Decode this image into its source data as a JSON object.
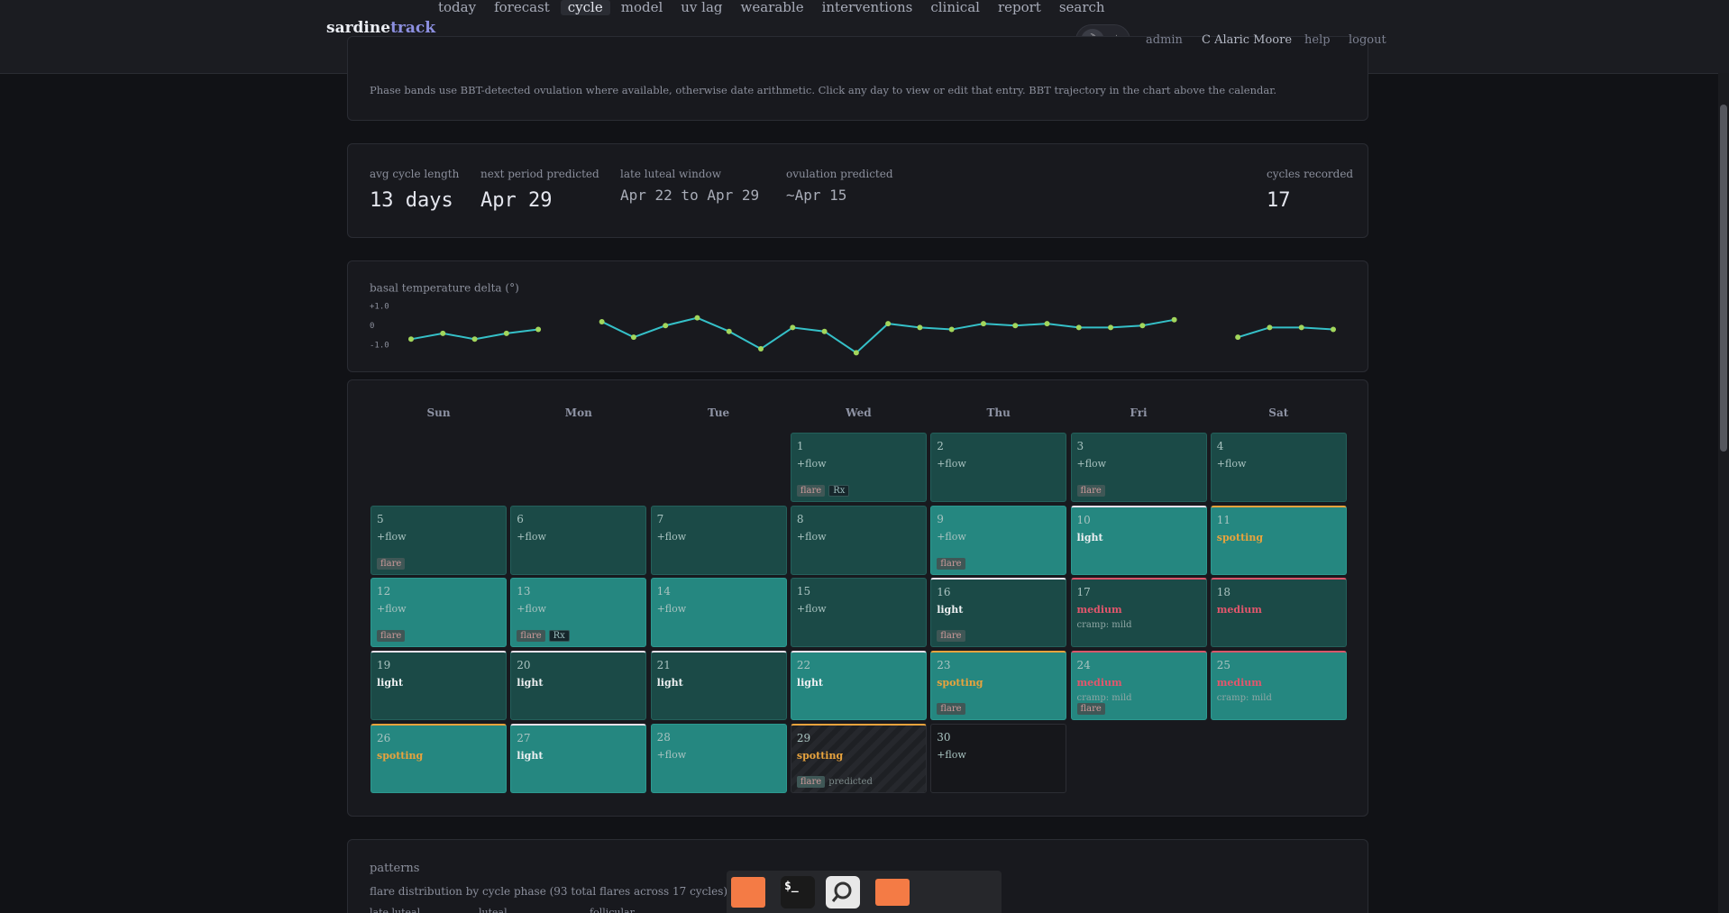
{
  "header": {
    "logo_a": "sardine",
    "logo_b": "track",
    "nav": [
      "today",
      "forecast",
      "cycle",
      "model",
      "uv lag",
      "wearable",
      "interventions",
      "clinical",
      "report",
      "search"
    ],
    "active_nav": 2,
    "toggle": [
      "☽",
      "★"
    ],
    "links": [
      "admin",
      "C Alaric Moore",
      "help",
      "logout"
    ]
  },
  "note": "Phase bands use BBT-detected ovulation where available, otherwise date arithmetic. Click any day to view or edit that entry. BBT trajectory in the chart above the calendar.",
  "stats": [
    {
      "label": "avg cycle length",
      "value": "13 days"
    },
    {
      "label": "next period predicted",
      "value": "Apr 29"
    },
    {
      "label": "late luteal window",
      "value": "Apr 22 to Apr 29"
    },
    {
      "label": "ovulation predicted",
      "value": "~Apr 15"
    },
    {
      "label": "cycles recorded",
      "value": "17"
    }
  ],
  "chart_data": {
    "type": "line",
    "title": "basal temperature delta (°)",
    "values": [
      -0.7,
      -0.4,
      -0.7,
      -0.4,
      -0.2,
      null,
      0.2,
      -0.6,
      0,
      0.4,
      -0.3,
      -1.2,
      -0.1,
      -0.3,
      -1.4,
      0.1,
      -0.1,
      -0.2,
      0.1,
      0,
      0.1,
      -0.1,
      -0.1,
      0,
      0.3,
      null,
      -0.6,
      -0.1,
      -0.1,
      -0.2
    ],
    "color": "#35c0c8",
    "marker_color": "#a2d65c",
    "ylim": [
      -1.5,
      1.5
    ],
    "yticks": [
      {
        "value": 1,
        "label": "+1.0"
      },
      0,
      {
        "value": -1,
        "label": "-1.0"
      }
    ],
    "grid": false
  },
  "calendar": {
    "weekdays": [
      "Sun",
      "Mon",
      "Tue",
      "Wed",
      "Thu",
      "Fri",
      "Sat"
    ],
    "days": [
      null,
      null,
      null,
      {
        "day": 1,
        "flow": "+flow",
        "color": "#a9c3c0",
        "shade": "dark",
        "edge": null,
        "tags": [
          {
            "text": "flare",
            "style": "pill"
          },
          {
            "text": "Rx",
            "style": "dpill"
          }
        ]
      },
      {
        "day": 2,
        "flow": "+flow",
        "color": "#a9c3c0",
        "shade": "dark",
        "edge": null,
        "tags": []
      },
      {
        "day": 3,
        "flow": "+flow",
        "color": "#a9c3c0",
        "shade": "dark",
        "edge": null,
        "tags": [
          {
            "text": "flare",
            "style": "pill"
          }
        ]
      },
      {
        "day": 4,
        "flow": "+flow",
        "color": "#a9c3c0",
        "shade": "dark",
        "edge": null,
        "tags": []
      },
      {
        "day": 5,
        "flow": "+flow",
        "color": "#a9c3c0",
        "shade": "dark",
        "edge": null,
        "tags": [
          {
            "text": "flare",
            "style": "pill"
          }
        ]
      },
      {
        "day": 6,
        "flow": "+flow",
        "color": "#a9c3c0",
        "shade": "dark",
        "edge": null,
        "tags": []
      },
      {
        "day": 7,
        "flow": "+flow",
        "color": "#a9c3c0",
        "shade": "dark",
        "edge": null,
        "tags": []
      },
      {
        "day": 8,
        "flow": "+flow",
        "color": "#a9c3c0",
        "shade": "dark",
        "edge": null,
        "tags": []
      },
      {
        "day": 9,
        "flow": "+flow",
        "color": "#a9c3c0",
        "shade": "bright",
        "edge": null,
        "tags": [
          {
            "text": "flare",
            "style": "pill"
          }
        ]
      },
      {
        "day": 10,
        "flow": "light",
        "color": "#eef0f2",
        "shade": "bright",
        "edge": "#e8e2ea",
        "tags": []
      },
      {
        "day": 11,
        "flow": "spotting",
        "color": "#e8a33d",
        "shade": "bright",
        "edge": "#e8a33d",
        "tags": []
      },
      {
        "day": 12,
        "flow": "+flow",
        "color": "#a9c3c0",
        "shade": "bright",
        "edge": null,
        "tags": [
          {
            "text": "flare",
            "style": "pill"
          }
        ]
      },
      {
        "day": 13,
        "flow": "+flow",
        "color": "#a9c3c0",
        "shade": "bright",
        "edge": null,
        "tags": [
          {
            "text": "flare",
            "style": "pill"
          },
          {
            "text": "Rx",
            "style": "dpill"
          }
        ]
      },
      {
        "day": 14,
        "flow": "+flow",
        "color": "#a9c3c0",
        "shade": "bright",
        "edge": null,
        "tags": []
      },
      {
        "day": 15,
        "flow": "+flow",
        "color": "#a9c3c0",
        "shade": "dark",
        "edge": null,
        "tags": []
      },
      {
        "day": 16,
        "flow": "light",
        "color": "#eef0f2",
        "shade": "dark",
        "edge": "#e8e2ea",
        "tags": [
          {
            "text": "flare",
            "style": "pill"
          }
        ]
      },
      {
        "day": 17,
        "flow": "medium",
        "note": "cramp: mild",
        "color": "#e2566c",
        "shade": "dark",
        "edge": "#d9566a",
        "tags": []
      },
      {
        "day": 18,
        "flow": "medium",
        "color": "#e2566c",
        "shade": "dark",
        "edge": "#d9566a",
        "tags": []
      },
      {
        "day": 19,
        "flow": "light",
        "color": "#eef0f2",
        "shade": "dark",
        "edge": "#e8e2ea",
        "tags": []
      },
      {
        "day": 20,
        "flow": "light",
        "color": "#eef0f2",
        "shade": "dark",
        "edge": "#e8e2ea",
        "tags": []
      },
      {
        "day": 21,
        "flow": "light",
        "color": "#eef0f2",
        "shade": "dark",
        "edge": "#e8e2ea",
        "tags": []
      },
      {
        "day": 22,
        "flow": "light",
        "color": "#eef0f2",
        "shade": "bright",
        "edge": "#e8e2ea",
        "tags": []
      },
      {
        "day": 23,
        "flow": "spotting",
        "color": "#e8a33d",
        "shade": "bright",
        "edge": "#e8a33d",
        "tags": [
          {
            "text": "flare",
            "style": "pill"
          }
        ]
      },
      {
        "day": 24,
        "flow": "medium",
        "note": "cramp: mild",
        "color": "#e2566c",
        "shade": "bright",
        "edge": "#d9566a",
        "tags": [
          {
            "text": "flare",
            "style": "pill"
          }
        ]
      },
      {
        "day": 25,
        "flow": "medium",
        "note": "cramp: mild",
        "color": "#e2566c",
        "shade": "bright",
        "edge": "#d9566a",
        "tags": []
      },
      {
        "day": 26,
        "flow": "spotting",
        "color": "#e8a33d",
        "shade": "bright",
        "edge": "#e8a33d",
        "tags": []
      },
      {
        "day": 27,
        "flow": "light",
        "color": "#eef0f2",
        "shade": "bright",
        "edge": "#e8e2ea",
        "tags": []
      },
      {
        "day": 28,
        "flow": "+flow",
        "color": "#a9c3c0",
        "shade": "bright",
        "edge": null,
        "tags": []
      },
      {
        "day": 29,
        "flow": "spotting",
        "color": "#e8a33d",
        "shade": "hatched",
        "edge": "#e8a33d",
        "tags": [
          {
            "text": "flare",
            "style": "pill"
          }
        ],
        "status": "predicted"
      },
      {
        "day": 30,
        "flow": "+flow",
        "color": "#a9c3c0",
        "shade": "plain",
        "edge": null,
        "tags": []
      }
    ]
  },
  "patterns": {
    "title": "patterns",
    "subtitle": "flare distribution by cycle phase (93 total flares across 17 cycles)",
    "phases": [
      "late luteal",
      "luteal",
      "follicular"
    ]
  }
}
